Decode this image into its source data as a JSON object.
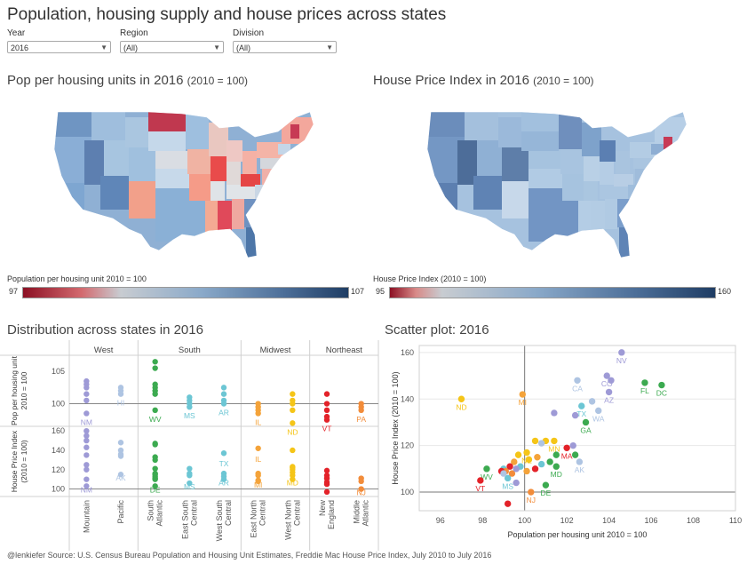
{
  "title": "Population, housing supply and house prices across states",
  "filters": [
    {
      "label": "Year",
      "value": "2016"
    },
    {
      "label": "Region",
      "value": "(All)"
    },
    {
      "label": "Division",
      "value": "(All)"
    }
  ],
  "map_left": {
    "title": "Pop per housing units in 2016",
    "suffix": "(2010 = 100)",
    "legend_title": "Population per housing unit 2010 = 100",
    "legend_min": "97",
    "legend_max": "107"
  },
  "map_right": {
    "title": "House Price Index in  2016",
    "suffix": "(2010 = 100)",
    "legend_title": "House Price Index (2010 = 100)",
    "legend_min": "95",
    "legend_max": "160"
  },
  "strip": {
    "title": "Distribution across states in  2016",
    "regions": [
      "West",
      "South",
      "Midwest",
      "Northeast"
    ],
    "row_labels": [
      "Pop per housing unit 2010 = 100",
      "House Price Index (2010 = 100)"
    ],
    "divisions": [
      "Mountain",
      "Pacific",
      "South Atlantic",
      "East South Central",
      "West South Central",
      "East North Central",
      "West North Central",
      "New England",
      "Middle Atlantic"
    ],
    "colors": [
      "#9e9ad6",
      "#aec4e2",
      "#3caa50",
      "#6cc6d4",
      "#6cc6d4",
      "#f4a33a",
      "#f5c518",
      "#e32229",
      "#f28c3a"
    ],
    "pop_ticks": [
      "105",
      "100"
    ],
    "hpi_ticks": [
      "160",
      "140",
      "120",
      "100"
    ],
    "pop_labels": [
      "NM",
      "HI",
      "WV",
      "MS",
      "AR",
      "IL",
      "ND",
      "VT",
      "PA"
    ],
    "hpi_labels": [
      "NM",
      "AK",
      "DE",
      "MS",
      "AR",
      "MI",
      "MD",
      "",
      "NJ"
    ],
    "hpi_labels_secondary": [
      "",
      "",
      "",
      "",
      "TX",
      "IL",
      "",
      "",
      ""
    ]
  },
  "colors": {
    "title": "#333333",
    "low": "#b5173a",
    "mid": "#d5dde6",
    "high": "#1f3d64"
  },
  "chart_data": [
    {
      "type": "scatter",
      "title": "Scatter plot:  2016",
      "xlabel": "Population per housing unit 2010 = 100",
      "ylabel": "House Price Index (2010 = 100)",
      "xlim": [
        95,
        110
      ],
      "ylim": [
        92,
        163
      ],
      "xticks": [
        "96",
        "98",
        "100",
        "102",
        "104",
        "106",
        "108",
        "110"
      ],
      "yticks": [
        "160",
        "140",
        "120",
        "100"
      ],
      "points": [
        {
          "label": "NV",
          "x": 104.6,
          "y": 160,
          "color": "#9e9ad6"
        },
        {
          "label": "CO",
          "x": 103.9,
          "y": 150,
          "color": "#9e9ad6"
        },
        {
          "label": "",
          "x": 104.1,
          "y": 148,
          "color": "#9e9ad6"
        },
        {
          "label": "AZ",
          "x": 104.0,
          "y": 143,
          "color": "#9e9ad6"
        },
        {
          "label": "CA",
          "x": 102.5,
          "y": 148,
          "color": "#aec4e2"
        },
        {
          "label": "FL",
          "x": 105.7,
          "y": 147,
          "color": "#3caa50"
        },
        {
          "label": "DC",
          "x": 106.5,
          "y": 146,
          "color": "#3caa50"
        },
        {
          "label": "TX",
          "x": 102.7,
          "y": 137,
          "color": "#6cc6d4"
        },
        {
          "label": "WA",
          "x": 103.5,
          "y": 135,
          "color": "#aec4e2"
        },
        {
          "label": "",
          "x": 103.2,
          "y": 139,
          "color": "#aec4e2"
        },
        {
          "label": "",
          "x": 102.4,
          "y": 133,
          "color": "#9e9ad6"
        },
        {
          "label": "",
          "x": 101.4,
          "y": 134,
          "color": "#9e9ad6"
        },
        {
          "label": "GA",
          "x": 102.9,
          "y": 130,
          "color": "#3caa50"
        },
        {
          "label": "ND",
          "x": 97.0,
          "y": 140,
          "color": "#f5c518"
        },
        {
          "label": "MI",
          "x": 99.9,
          "y": 142,
          "color": "#f4a33a"
        },
        {
          "label": "MN",
          "x": 101.4,
          "y": 122,
          "color": "#f5c518"
        },
        {
          "label": "MA",
          "x": 102.0,
          "y": 119,
          "color": "#e32229"
        },
        {
          "label": "",
          "x": 101.0,
          "y": 122,
          "color": "#f5c518"
        },
        {
          "label": "",
          "x": 100.5,
          "y": 122,
          "color": "#f5c518"
        },
        {
          "label": "NE",
          "x": 100.1,
          "y": 117,
          "color": "#f5c518"
        },
        {
          "label": "",
          "x": 100.8,
          "y": 121,
          "color": "#aec4e2"
        },
        {
          "label": "",
          "x": 102.3,
          "y": 120,
          "color": "#9e9ad6"
        },
        {
          "label": "AK",
          "x": 102.6,
          "y": 113,
          "color": "#aec4e2"
        },
        {
          "label": "",
          "x": 102.4,
          "y": 116,
          "color": "#3caa50"
        },
        {
          "label": "",
          "x": 101.5,
          "y": 116,
          "color": "#3caa50"
        },
        {
          "label": "MD",
          "x": 101.5,
          "y": 111,
          "color": "#3caa50"
        },
        {
          "label": "",
          "x": 101.2,
          "y": 113,
          "color": "#3caa50"
        },
        {
          "label": "",
          "x": 100.6,
          "y": 115,
          "color": "#f4a33a"
        },
        {
          "label": "",
          "x": 100.2,
          "y": 114,
          "color": "#f5c518"
        },
        {
          "label": "",
          "x": 99.7,
          "y": 116,
          "color": "#f5c518"
        },
        {
          "label": "",
          "x": 99.5,
          "y": 113,
          "color": "#f4a33a"
        },
        {
          "label": "",
          "x": 99.8,
          "y": 111,
          "color": "#6cc6d4"
        },
        {
          "label": "",
          "x": 100.1,
          "y": 109,
          "color": "#f4a33a"
        },
        {
          "label": "",
          "x": 99.4,
          "y": 108,
          "color": "#f28c3a"
        },
        {
          "label": "",
          "x": 100.5,
          "y": 110,
          "color": "#e32229"
        },
        {
          "label": "",
          "x": 99.3,
          "y": 111,
          "color": "#e32229"
        },
        {
          "label": "",
          "x": 99.6,
          "y": 110,
          "color": "#9e9ad6"
        },
        {
          "label": "",
          "x": 99.0,
          "y": 110,
          "color": "#6cc6d4"
        },
        {
          "label": "",
          "x": 100.8,
          "y": 112,
          "color": "#6cc6d4"
        },
        {
          "label": "",
          "x": 99.1,
          "y": 109,
          "color": "#f28c3a"
        },
        {
          "label": "WV",
          "x": 98.2,
          "y": 110,
          "color": "#3caa50"
        },
        {
          "label": "",
          "x": 98.9,
          "y": 109,
          "color": "#e32229"
        },
        {
          "label": "MS",
          "x": 99.2,
          "y": 106,
          "color": "#6cc6d4"
        },
        {
          "label": "",
          "x": 99.6,
          "y": 104,
          "color": "#9e9ad6"
        },
        {
          "label": "",
          "x": 99.0,
          "y": 108,
          "color": "#aec4e2"
        },
        {
          "label": "VT",
          "x": 97.9,
          "y": 105,
          "color": "#e32229"
        },
        {
          "label": "NJ",
          "x": 100.3,
          "y": 100,
          "color": "#f28c3a"
        },
        {
          "label": "DE",
          "x": 101.0,
          "y": 103,
          "color": "#3caa50"
        },
        {
          "label": "",
          "x": 99.2,
          "y": 95,
          "color": "#e32229"
        }
      ]
    },
    {
      "type": "scatter",
      "title": "Distribution across states in  2016",
      "series": [
        {
          "name": "Mountain",
          "pop": [
            103.5,
            103.0,
            102.5,
            101.5,
            100.5,
            98.5
          ],
          "hpi": [
            160,
            155,
            150,
            143,
            135,
            125,
            120,
            110,
            103
          ]
        },
        {
          "name": "Pacific",
          "pop": [
            102.5,
            102.0,
            101.5
          ],
          "hpi": [
            148,
            140,
            136,
            134,
            115
          ]
        },
        {
          "name": "South Atlantic",
          "pop": [
            106.5,
            105.5,
            103.0,
            102.5,
            102.0,
            101.5,
            99.0
          ],
          "hpi": [
            147,
            146,
            133,
            130,
            121,
            116,
            115,
            113,
            111,
            110,
            103
          ]
        },
        {
          "name": "East South Central",
          "pop": [
            101.0,
            100.5,
            100.0,
            99.5
          ],
          "hpi": [
            121,
            116,
            114,
            106
          ]
        },
        {
          "name": "West South Central",
          "pop": [
            102.5,
            101.5,
            100.5,
            100.0
          ],
          "hpi": [
            137,
            116,
            113,
            110
          ]
        },
        {
          "name": "East North Central",
          "pop": [
            100.0,
            99.5,
            99.0,
            98.5
          ],
          "hpi": [
            142,
            116,
            114,
            109,
            108
          ]
        },
        {
          "name": "West North Central",
          "pop": [
            101.5,
            100.5,
            100.0,
            99.0,
            97.0
          ],
          "hpi": [
            140,
            123,
            122,
            120,
            117,
            114,
            110
          ]
        },
        {
          "name": "New England",
          "pop": [
            101.5,
            100.0,
            99.0,
            98.0,
            97.5
          ],
          "hpi": [
            119,
            114,
            111,
            107,
            105,
            97
          ]
        },
        {
          "name": "Middle Atlantic",
          "pop": [
            100.0,
            99.5,
            99.0
          ],
          "hpi": [
            111,
            108,
            100
          ]
        }
      ]
    }
  ],
  "footer": "@lenkiefer Source: U.S. Census Bureau Population and Housing Unit Estimates, Freddie Mac House Price Index, July 2010 to July 2016"
}
